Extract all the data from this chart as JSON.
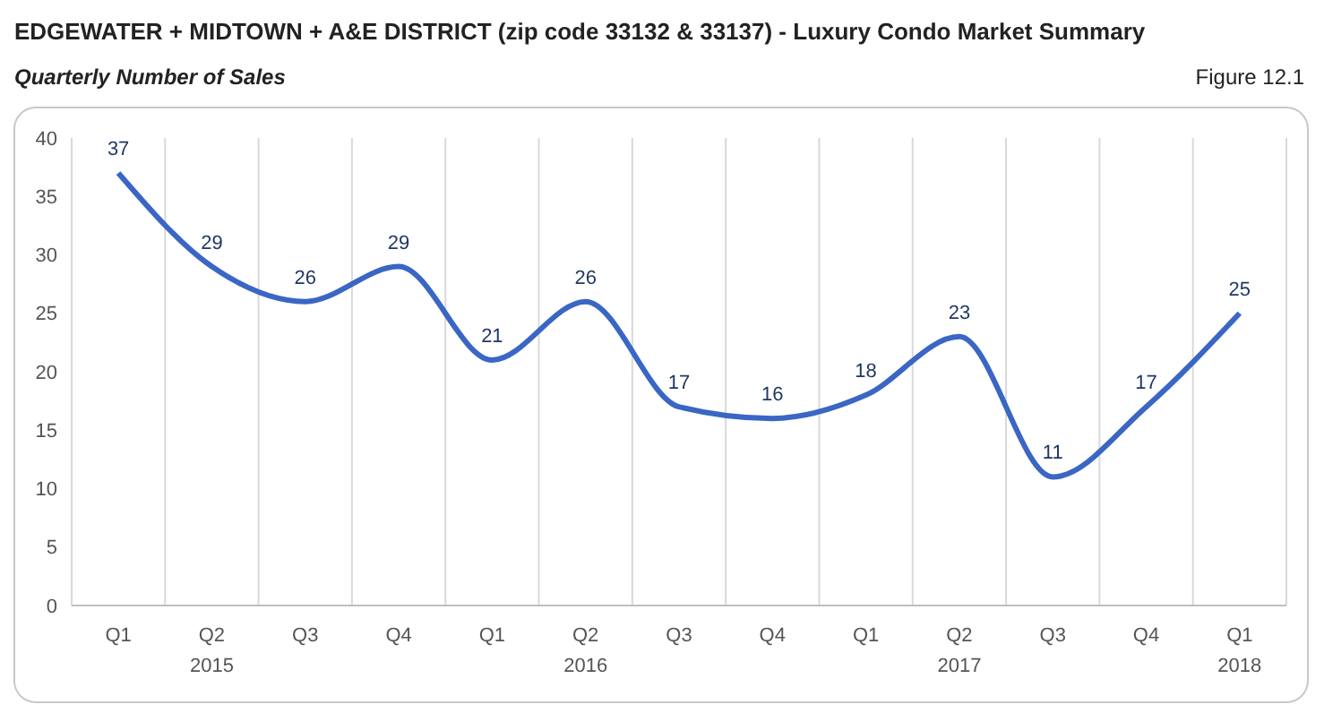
{
  "chart_data": {
    "type": "line",
    "title": "EDGEWATER + MIDTOWN + A&E DISTRICT (zip code 33132 & 33137) - Luxury Condo Market Summary",
    "subtitle": "Quarterly Number of Sales",
    "annotations": [
      "Figure 12.1"
    ],
    "categories": [
      "Q1",
      "Q2\n2015",
      "Q3",
      "Q4",
      "Q1",
      "Q2\n2016",
      "Q3",
      "Q4",
      "Q1",
      "Q2\n2017",
      "Q3",
      "Q4",
      "Q1\n2018"
    ],
    "series": [
      {
        "color": "#3a66c4",
        "values": [
          37,
          29,
          26,
          29,
          21,
          26,
          17,
          16,
          18,
          23,
          11,
          17,
          25
        ]
      }
    ],
    "ylim": [
      0,
      40
    ],
    "yticks": [
      0,
      5,
      10,
      15,
      20,
      25,
      30,
      35,
      40
    ],
    "grid": "x",
    "data_labels": true,
    "marker": "none",
    "line_style": "solid"
  }
}
